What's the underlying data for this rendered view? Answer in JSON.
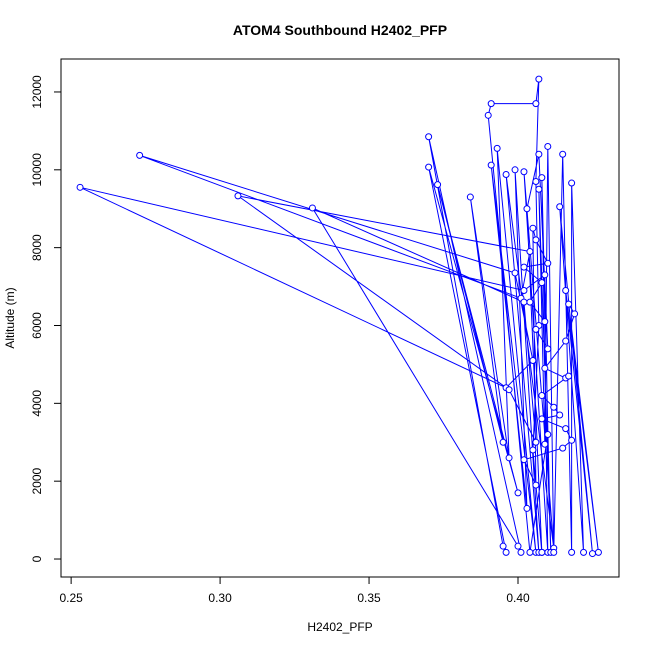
{
  "chart_data": {
    "type": "scatter",
    "mode": "lines+markers",
    "title": "ATOM4 Southbound H2402_PFP",
    "x_label": "H2402_PFP",
    "y_label": "Altitude (m)",
    "color": "#0000ff",
    "xlim": [
      0.2466,
      0.4339
    ],
    "ylim": [
      -462,
      12847
    ],
    "xticks": [
      0.25,
      {
        "value": 0.3,
        "label": "0.30"
      },
      0.35,
      {
        "value": 0.4,
        "label": "0.40"
      }
    ],
    "yticks": [
      0,
      2000,
      4000,
      6000,
      8000,
      10000,
      12000
    ],
    "x": [
      0.408,
      0.405,
      0.407,
      0.406,
      0.407,
      0.406,
      0.391,
      0.39,
      0.404,
      0.41,
      0.409,
      0.402,
      0.253,
      0.396,
      0.405,
      0.399,
      0.273,
      0.401,
      0.404,
      0.306,
      0.397,
      0.406,
      0.402,
      0.331,
      0.4,
      0.401,
      0.37,
      0.395,
      0.396,
      0.37,
      0.4,
      0.373,
      0.395,
      0.384,
      0.397,
      0.393,
      0.406,
      0.391,
      0.403,
      0.399,
      0.407,
      0.396,
      0.412,
      0.402,
      0.41,
      0.408,
      0.411,
      0.407,
      0.409,
      0.41,
      0.412,
      0.415,
      0.418,
      0.418,
      0.422,
      0.414,
      0.425,
      0.416,
      0.427,
      0.417,
      0.419,
      0.416,
      0.409,
      0.416,
      0.417,
      0.408,
      0.412,
      0.414,
      0.408,
      0.416,
      0.418,
      0.415,
      0.402,
      0.406,
      0.405,
      0.406,
      0.41,
      0.402,
      0.408,
      0.404,
      0.409,
      0.406,
      0.41,
      0.407,
      0.403,
      0.408
    ],
    "y": [
      170,
      2800,
      6000,
      9700,
      12330,
      11700,
      11700,
      11400,
      170,
      3200,
      7300,
      6900,
      9550,
      4400,
      5100,
      7350,
      10370,
      6700,
      7900,
      9330,
      4350,
      3000,
      6600,
      9020,
      330,
      170,
      10850,
      330,
      170,
      10070,
      1700,
      9620,
      3000,
      9300,
      2600,
      10550,
      170,
      10120,
      1300,
      10000,
      170,
      9880,
      280,
      9950,
      170,
      9800,
      170,
      9500,
      2950,
      10600,
      170,
      10400,
      170,
      9660,
      170,
      9050,
      140,
      6900,
      170,
      6550,
      6300,
      5600,
      4900,
      4650,
      4700,
      4200,
      3900,
      3700,
      3600,
      3350,
      3050,
      2850,
      2550,
      1900,
      8500,
      8200,
      7600,
      7500,
      7100,
      6600,
      6100,
      5900,
      5400,
      10400,
      9000,
      170
    ]
  }
}
